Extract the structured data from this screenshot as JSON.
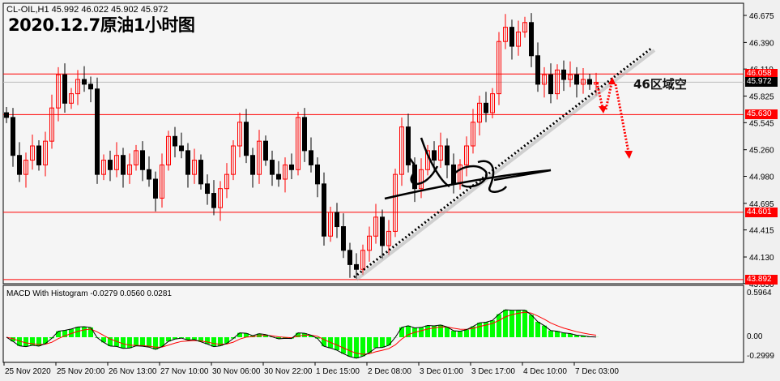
{
  "header": {
    "symbol_line": "CL-OIL,H1  45.992 46.022 45.902 45.972",
    "title": "2020.12.7原油1小时图"
  },
  "annotation": {
    "text": "46区域空"
  },
  "macd": {
    "label": "MACD With Histogram -0.0279 0.0560 0.0281",
    "axis_ticks": [
      "0.5964",
      "0.00",
      "-0.2999"
    ]
  },
  "colors": {
    "bull": "#ff0000",
    "bear": "#000000",
    "level": "#ff0000",
    "histogram": "#00ff00",
    "signal": "#ff0000",
    "macd_line": "#000000",
    "background": "#f5f5f5"
  },
  "chart_data": {
    "type": "candlestick",
    "symbol": "CL-OIL",
    "timeframe": "H1",
    "ylim": [
      43.85,
      46.77
    ],
    "y_ticks": [
      "46.675",
      "46.390",
      "46.110",
      "45.825",
      "45.545",
      "45.260",
      "44.980",
      "44.695",
      "44.415",
      "44.130",
      "43.850"
    ],
    "x_ticks": [
      "25 Nov 2020",
      "25 Nov 20:00",
      "26 Nov 13:00",
      "27 Nov 10:00",
      "30 Nov 06:00",
      "30 Nov 22:00",
      "1 Dec 15:00",
      "2 Dec 08:00",
      "3 Dec 01:00",
      "3 Dec 17:00",
      "4 Dec 10:00",
      "7 Dec 03:00"
    ],
    "closes": [
      45.6,
      45.2,
      45.0,
      45.15,
      45.3,
      45.1,
      45.35,
      45.7,
      46.05,
      45.75,
      45.85,
      46.0,
      45.95,
      45.9,
      45.0,
      45.15,
      45.05,
      45.2,
      45.0,
      45.1,
      45.25,
      45.05,
      44.95,
      44.75,
      45.1,
      45.4,
      45.3,
      45.25,
      45.0,
      45.15,
      44.9,
      44.8,
      44.65,
      44.85,
      45.0,
      45.3,
      45.55,
      45.2,
      45.0,
      45.35,
      45.15,
      45.0,
      44.95,
      45.1,
      45.05,
      45.6,
      45.25,
      45.1,
      44.9,
      44.35,
      44.6,
      44.45,
      44.2,
      44.05,
      44.0,
      44.2,
      44.35,
      44.55,
      44.25,
      44.4,
      45.0,
      45.5,
      45.1,
      44.85,
      45.05,
      45.25,
      45.15,
      45.3,
      45.1,
      44.9,
      45.1,
      45.3,
      45.55,
      45.75,
      45.65,
      45.85,
      46.4,
      46.55,
      46.35,
      46.5,
      46.6,
      46.25,
      45.95,
      46.05,
      45.85,
      46.1,
      46.0,
      46.05,
      45.95,
      46.0,
      45.95,
      45.97
    ],
    "levels": [
      {
        "price": 46.058,
        "label": "46.058",
        "color": "#ff0000"
      },
      {
        "price": 45.972,
        "label": "45.972",
        "color": "#000000",
        "current": true
      },
      {
        "price": 45.63,
        "label": "45.630",
        "color": "#ff0000"
      },
      {
        "price": 44.601,
        "label": "44.601",
        "color": "#ff0000"
      },
      {
        "price": 43.892,
        "label": "43.892",
        "color": "#ff0000"
      }
    ]
  }
}
